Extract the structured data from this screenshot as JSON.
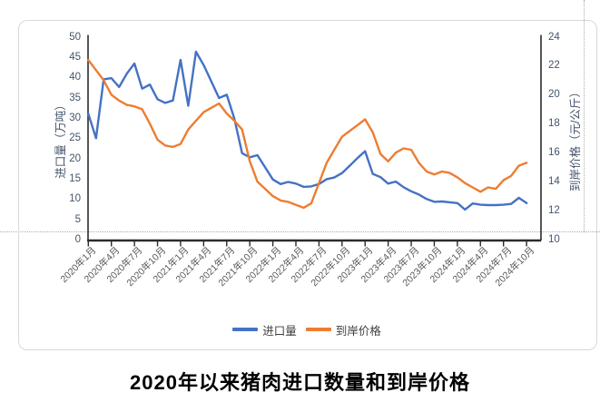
{
  "document": {
    "background_color": "#ffffff",
    "cell_border_color": "#ababab"
  },
  "chart_data": {
    "type": "line",
    "title": "2020年以来猪肉进口数量和到岸价格",
    "x_start": "2020-01",
    "x_end": "2024-10",
    "x_frequency": "monthly",
    "x_tick_labels": [
      "2020年1月",
      "2020年4月",
      "2020年7月",
      "2020年10月",
      "2021年1月",
      "2021年4月",
      "2021年7月",
      "2021年10月",
      "2022年1月",
      "2022年4月",
      "2022年7月",
      "2022年10月",
      "2023年1月",
      "2023年4月",
      "2023年7月",
      "2023年10月",
      "2024年1月",
      "2024年4月",
      "2024年7月",
      "2024年10月"
    ],
    "left_axis": {
      "title": "进口量（万吨）",
      "min": 0,
      "max": 50,
      "tick_step": 5,
      "ticks": [
        0,
        5,
        10,
        15,
        20,
        25,
        30,
        35,
        40,
        45,
        50
      ]
    },
    "right_axis": {
      "title": "到岸价格（元/公斤）",
      "min": 10,
      "max": 24,
      "tick_step": 2,
      "ticks": [
        10,
        12,
        14,
        16,
        18,
        20,
        22,
        24
      ]
    },
    "grid": false,
    "legend_position": "bottom",
    "series": [
      {
        "name": "进口量",
        "axis": "left",
        "color": "#4472C4",
        "values": [
          31.0,
          25.0,
          39.5,
          39.8,
          37.6,
          40.9,
          43.4,
          37.2,
          38.2,
          34.6,
          33.7,
          34.3,
          44.3,
          33.0,
          46.3,
          43.0,
          39.0,
          34.9,
          35.7,
          29.8,
          21.3,
          20.3,
          20.8,
          17.8,
          14.8,
          13.7,
          14.2,
          13.8,
          13.0,
          13.1,
          13.7,
          14.9,
          15.3,
          16.4,
          18.2,
          20.1,
          21.8,
          16.2,
          15.4,
          13.8,
          14.3,
          12.9,
          11.9,
          11.1,
          10.0,
          9.3,
          9.4,
          9.2,
          9.0,
          7.4,
          8.9,
          8.6,
          8.5,
          8.5,
          8.6,
          8.8,
          10.3,
          9.0
        ]
      },
      {
        "name": "到岸价格",
        "axis": "right",
        "color": "#ED7D31",
        "values": [
          22.4,
          21.7,
          21.0,
          20.0,
          19.6,
          19.3,
          19.2,
          19.0,
          18.0,
          16.9,
          16.5,
          16.4,
          16.6,
          17.6,
          18.2,
          18.8,
          19.1,
          19.4,
          18.7,
          18.2,
          17.6,
          15.4,
          14.0,
          13.5,
          13.0,
          12.7,
          12.6,
          12.4,
          12.2,
          12.5,
          13.9,
          15.3,
          16.2,
          17.1,
          17.5,
          17.9,
          18.3,
          17.4,
          15.9,
          15.4,
          16.0,
          16.3,
          16.2,
          15.3,
          14.7,
          14.5,
          14.7,
          14.6,
          14.3,
          13.9,
          13.6,
          13.3,
          13.6,
          13.5,
          14.1,
          14.4,
          15.1,
          15.3
        ]
      }
    ],
    "axis_line_color": "#2b2b2b",
    "tick_label_color": "#44546A",
    "x_label_color": "#595959"
  }
}
